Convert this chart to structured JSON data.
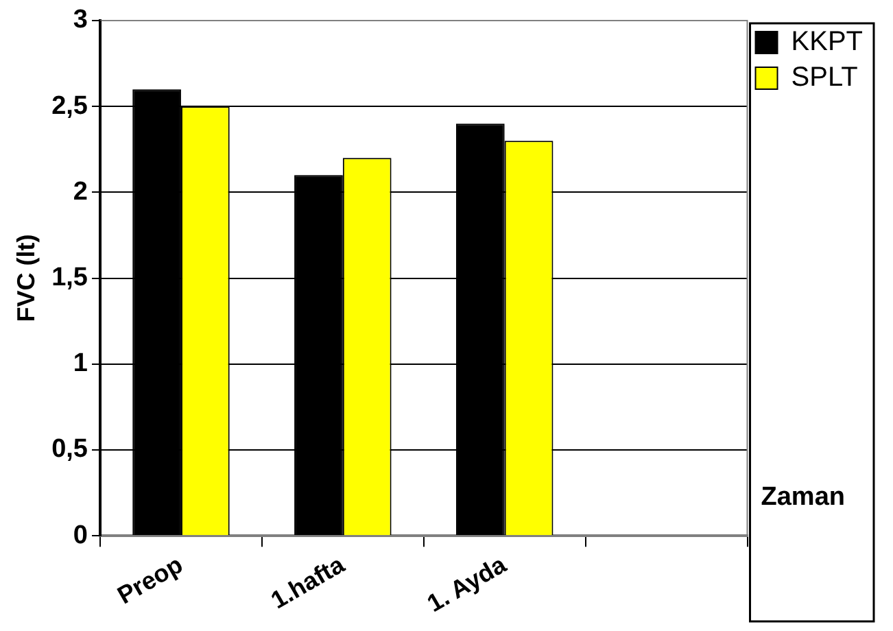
{
  "chart_data": {
    "type": "bar",
    "xlabel": "Zaman",
    "ylabel": "FVC (lt)",
    "categories": [
      "Preop",
      "1.hafta",
      "1. Ayda",
      null
    ],
    "series": [
      {
        "name": "KKPT",
        "color": "#000000",
        "values": [
          2.6,
          2.1,
          2.4,
          null
        ]
      },
      {
        "name": "SPLT",
        "color": "#ffff00",
        "values": [
          2.5,
          2.2,
          2.3,
          null
        ]
      }
    ],
    "ylim": [
      0,
      3
    ],
    "yticks": [
      {
        "value": 0,
        "label": "0"
      },
      {
        "value": 0.5,
        "label": "0,5"
      },
      {
        "value": 1,
        "label": "1"
      },
      {
        "value": 1.5,
        "label": "1,5"
      },
      {
        "value": 2,
        "label": "2"
      },
      {
        "value": 2.5,
        "label": "2,5"
      },
      {
        "value": 3,
        "label": "3"
      }
    ],
    "grid": "y",
    "legend": "top right"
  }
}
